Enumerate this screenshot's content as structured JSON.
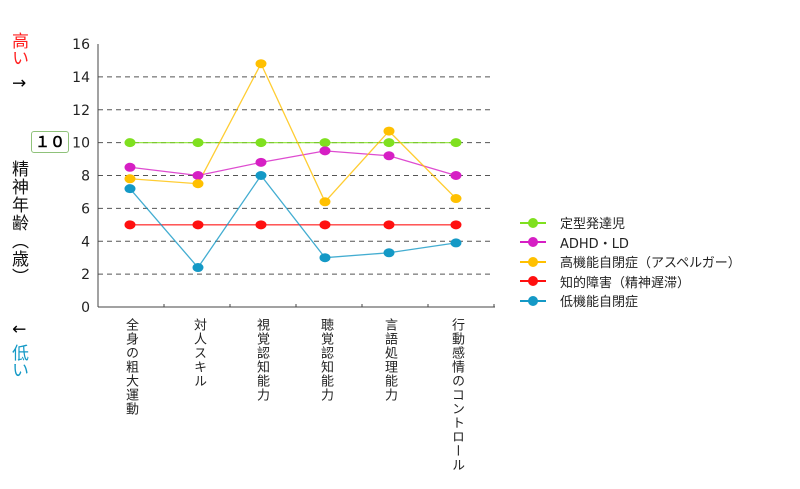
{
  "chart_data": {
    "type": "line",
    "title": "",
    "ylabel": "精神年齢（歳）",
    "y_high_label": "高い",
    "y_low_label": "低い",
    "arrow_up": "↑",
    "arrow_down": "↓",
    "ylim": [
      0,
      16
    ],
    "yticks": [
      "0",
      "2",
      "4",
      "6",
      "8",
      "10",
      "12",
      "14",
      "16"
    ],
    "highlight_tick": "１０",
    "grid": true,
    "legend_position": "right",
    "categories": [
      "全身の粗大運動",
      "対人スキル",
      "視覚認知能力",
      "聴覚認知能力",
      "言語処理能力",
      "行動感情のコントロール"
    ],
    "series": [
      {
        "name": "定型発達児",
        "color": "#7fe01f",
        "values": [
          10,
          10,
          10,
          10,
          10,
          10
        ]
      },
      {
        "name": "ADHD・LD",
        "color": "#d61fc4",
        "values": [
          8.5,
          8.0,
          8.8,
          9.5,
          9.2,
          8.0
        ]
      },
      {
        "name": "高機能自閉症（アスペルガー）",
        "color": "#ffc000",
        "values": [
          7.8,
          7.5,
          14.8,
          6.4,
          10.7,
          6.6
        ]
      },
      {
        "name": "知的障害（精神遅滞）",
        "color": "#ff1010",
        "values": [
          5,
          5,
          5,
          5,
          5,
          5
        ]
      },
      {
        "name": "低機能自閉症",
        "color": "#1499c6",
        "values": [
          7.2,
          2.4,
          8.0,
          3.0,
          3.3,
          3.9
        ]
      }
    ]
  }
}
